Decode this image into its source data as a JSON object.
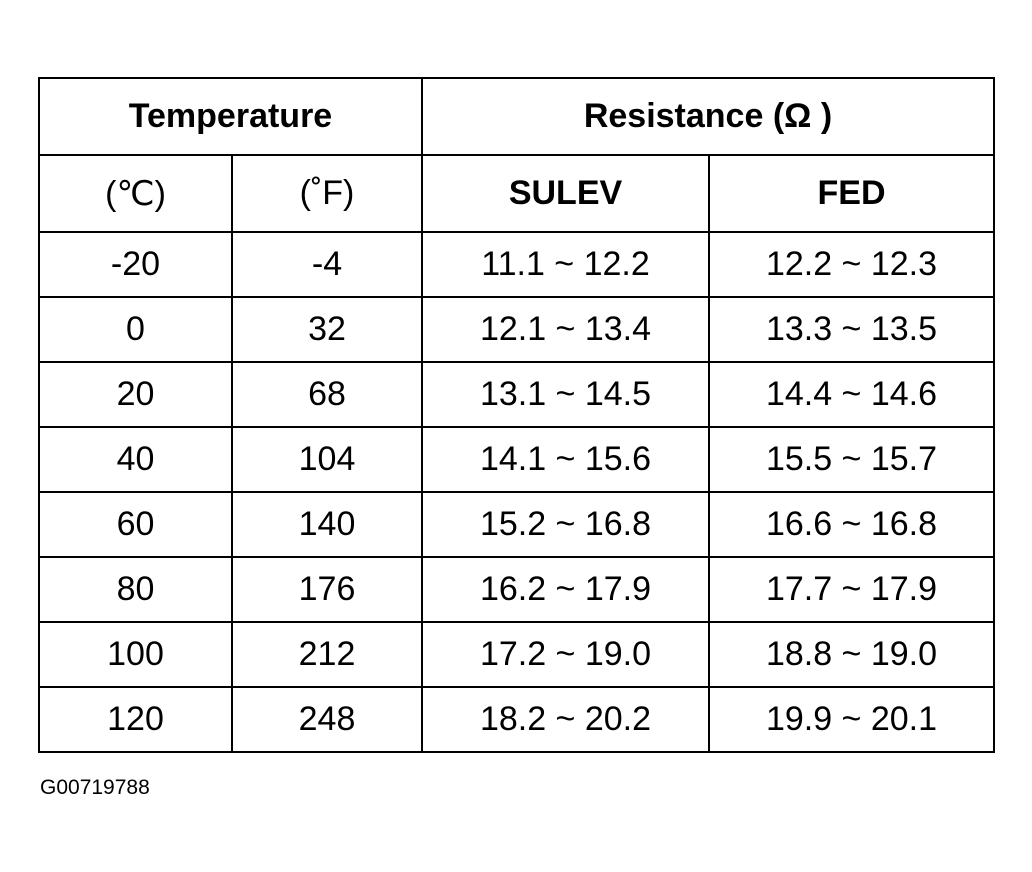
{
  "table": {
    "header": {
      "temperature": "Temperature",
      "resistance": "Resistance (Ω )"
    },
    "subheader": {
      "celsius": "(℃)",
      "fahrenheit": "(˚F)",
      "sulev": "SULEV",
      "fed": "FED"
    },
    "rows": [
      {
        "c": "-20",
        "f": "-4",
        "sulev": "11.1 ~ 12.2",
        "fed": "12.2 ~ 12.3"
      },
      {
        "c": "0",
        "f": "32",
        "sulev": "12.1 ~ 13.4",
        "fed": "13.3 ~ 13.5"
      },
      {
        "c": "20",
        "f": "68",
        "sulev": "13.1 ~ 14.5",
        "fed": "14.4 ~ 14.6"
      },
      {
        "c": "40",
        "f": "104",
        "sulev": "14.1 ~ 15.6",
        "fed": "15.5 ~ 15.7"
      },
      {
        "c": "60",
        "f": "140",
        "sulev": "15.2 ~ 16.8",
        "fed": "16.6 ~ 16.8"
      },
      {
        "c": "80",
        "f": "176",
        "sulev": "16.2 ~ 17.9",
        "fed": "17.7 ~ 17.9"
      },
      {
        "c": "100",
        "f": "212",
        "sulev": "17.2 ~ 19.0",
        "fed": "18.8 ~ 19.0"
      },
      {
        "c": "120",
        "f": "248",
        "sulev": "18.2 ~ 20.2",
        "fed": "19.9 ~ 20.1"
      }
    ]
  },
  "figure_code": "G00719788"
}
